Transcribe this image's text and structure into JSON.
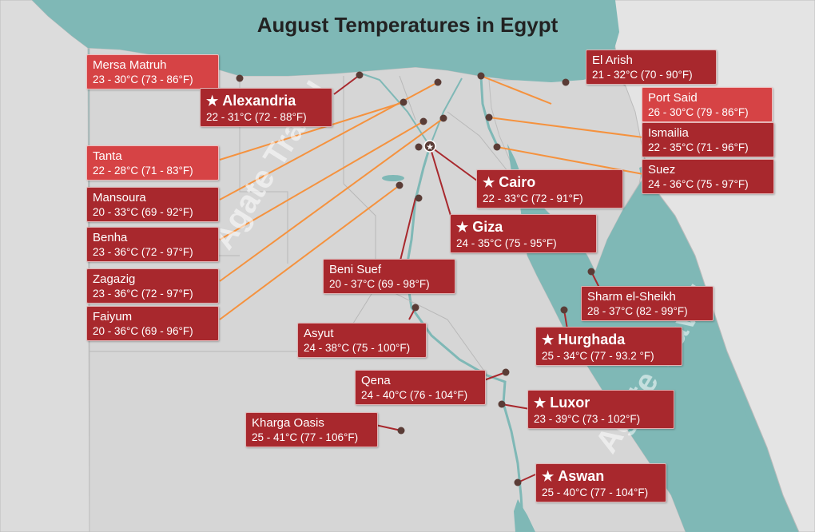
{
  "title": "August Temperatures in Egypt",
  "watermark": "Agate Travel",
  "colors": {
    "sea": "#7fb8b6",
    "land": "#d6d6d6",
    "neighbor_land": "#e4e4e4",
    "label_light": "#d64345",
    "label_dark": "#a8282d",
    "leader_line": "#f5923e",
    "city_dot": "#5a3c36"
  },
  "cities": [
    {
      "name": "Mersa Matruh",
      "temp": "23 - 30°C (73 - 86°F)"
    },
    {
      "name": "Alexandria",
      "temp": "22 - 31°C (72 - 88°F)"
    },
    {
      "name": "El Arish",
      "temp": "21 - 32°C (70 - 90°F)"
    },
    {
      "name": "Port Said",
      "temp": "26 - 30°C (79 - 86°F)"
    },
    {
      "name": "Ismailia",
      "temp": "22 - 35°C (71 - 96°F)"
    },
    {
      "name": "Suez",
      "temp": "24 - 36°C (75 - 97°F)"
    },
    {
      "name": "Tanta",
      "temp": "22 - 28°C (71 - 83°F)"
    },
    {
      "name": "Mansoura",
      "temp": "20 - 33°C (69 - 92°F)"
    },
    {
      "name": "Benha",
      "temp": "23 - 36°C (72 - 97°F)"
    },
    {
      "name": "Zagazig",
      "temp": "23 - 36°C (72 - 97°F)"
    },
    {
      "name": "Faiyum",
      "temp": "20 - 36°C (69 - 96°F)"
    },
    {
      "name": "Cairo",
      "temp": "22 - 33°C (72 - 91°F)"
    },
    {
      "name": "Giza",
      "temp": "24 - 35°C (75 - 95°F)"
    },
    {
      "name": "Beni Suef",
      "temp": "20 - 37°C (69 - 98°F)"
    },
    {
      "name": "Sharm el-Sheikh",
      "temp": "28 - 37°C (82 - 99°F)"
    },
    {
      "name": "Asyut",
      "temp": "24 - 38°C (75 - 100°F)"
    },
    {
      "name": "Hurghada",
      "temp": "25 - 34°C (77 - 93.2 °F)"
    },
    {
      "name": "Qena",
      "temp": "24 - 40°C (76 - 104°F)"
    },
    {
      "name": "Luxor",
      "temp": "23 - 39°C (73 - 102°F)"
    },
    {
      "name": "Kharga Oasis",
      "temp": "25 - 41°C (77 - 106°F)"
    },
    {
      "name": "Aswan",
      "temp": "25 - 40°C (77 - 104°F)"
    }
  ]
}
